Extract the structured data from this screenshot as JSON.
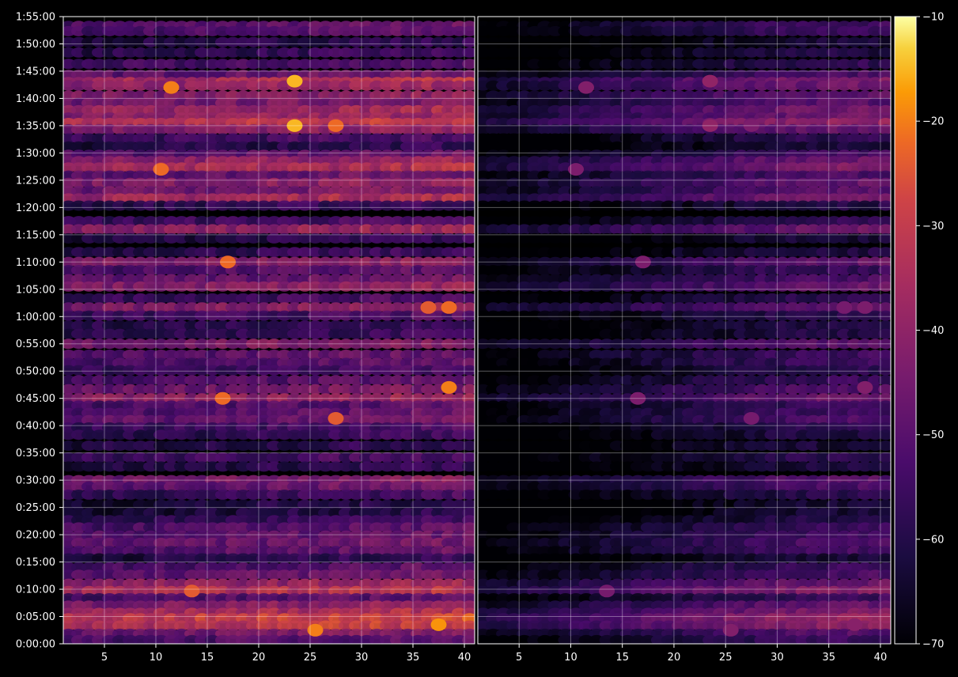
{
  "chart_data": {
    "type": "heatmap",
    "title": "",
    "xlabel": "",
    "ylabel": "",
    "grid": true,
    "colormap": "inferno",
    "panels": [
      {
        "name": "",
        "x_range": [
          1,
          40
        ],
        "intensity_scale": 1.0
      },
      {
        "name": "",
        "x_range": [
          1,
          40
        ],
        "intensity_scale": 0.55
      }
    ],
    "x_ticks": [
      5,
      10,
      15,
      20,
      25,
      30,
      35,
      40
    ],
    "x_tick_labels": [
      "5",
      "10",
      "15",
      "20",
      "25",
      "30",
      "35",
      "40"
    ],
    "y_range_seconds": [
      0,
      6900
    ],
    "y_ticks": [
      0,
      300,
      600,
      900,
      1200,
      1500,
      1800,
      2100,
      2400,
      2700,
      3000,
      3300,
      3600,
      3900,
      4200,
      4500,
      4800,
      5100,
      5400,
      5700,
      6000,
      6300,
      6600,
      6900
    ],
    "y_tick_labels": [
      "0:00:00",
      "0:05:00",
      "0:10:00",
      "0:15:00",
      "0:20:00",
      "0:25:00",
      "0:30:00",
      "0:35:00",
      "0:40:00",
      "0:45:00",
      "0:50:00",
      "0:55:00",
      "1:00:00",
      "1:05:00",
      "1:10:00",
      "1:15:00",
      "1:20:00",
      "1:25:00",
      "1:30:00",
      "1:35:00",
      "1:40:00",
      "1:45:00",
      "1:50:00",
      "1:55:00"
    ],
    "colorbar": {
      "min": -70,
      "max": -10,
      "ticks": [
        -70,
        -60,
        -50,
        -40,
        -30,
        -20,
        -10
      ],
      "tick_labels": [
        "−70",
        "−60",
        "−50",
        "−40",
        "−30",
        "−20",
        "−10"
      ]
    },
    "bands": [
      {
        "time_s": 6798,
        "value": -50
      },
      {
        "time_s": 6740,
        "value": -52
      },
      {
        "time_s": 6620,
        "value": -60
      },
      {
        "time_s": 6505,
        "value": -58
      },
      {
        "time_s": 6380,
        "value": -54
      },
      {
        "time_s": 6260,
        "value": -48
      },
      {
        "time_s": 6180,
        "value": -35
      },
      {
        "time_s": 6140,
        "value": -40
      },
      {
        "time_s": 6030,
        "value": -42
      },
      {
        "time_s": 5950,
        "value": -45
      },
      {
        "time_s": 5870,
        "value": -38
      },
      {
        "time_s": 5790,
        "value": -40
      },
      {
        "time_s": 5730,
        "value": -32
      },
      {
        "time_s": 5660,
        "value": -42
      },
      {
        "time_s": 5560,
        "value": -55
      },
      {
        "time_s": 5470,
        "value": -60
      },
      {
        "time_s": 5380,
        "value": -50
      },
      {
        "time_s": 5310,
        "value": -40
      },
      {
        "time_s": 5240,
        "value": -36
      },
      {
        "time_s": 5150,
        "value": -48
      },
      {
        "time_s": 5070,
        "value": -42
      },
      {
        "time_s": 4980,
        "value": -45
      },
      {
        "time_s": 4900,
        "value": -36
      },
      {
        "time_s": 4820,
        "value": -58
      },
      {
        "time_s": 4650,
        "value": -55
      },
      {
        "time_s": 4560,
        "value": -40
      },
      {
        "time_s": 4460,
        "value": -60
      },
      {
        "time_s": 4310,
        "value": -58
      },
      {
        "time_s": 4200,
        "value": -42
      },
      {
        "time_s": 4110,
        "value": -52
      },
      {
        "time_s": 4010,
        "value": -48
      },
      {
        "time_s": 3930,
        "value": -42
      },
      {
        "time_s": 3800,
        "value": -55
      },
      {
        "time_s": 3700,
        "value": -42
      },
      {
        "time_s": 3610,
        "value": -55
      },
      {
        "time_s": 3500,
        "value": -58
      },
      {
        "time_s": 3410,
        "value": -58
      },
      {
        "time_s": 3300,
        "value": -44
      },
      {
        "time_s": 3180,
        "value": -50
      },
      {
        "time_s": 3090,
        "value": -52
      },
      {
        "time_s": 3010,
        "value": -56
      },
      {
        "time_s": 2900,
        "value": -52
      },
      {
        "time_s": 2800,
        "value": -46
      },
      {
        "time_s": 2700,
        "value": -40
      },
      {
        "time_s": 2620,
        "value": -52
      },
      {
        "time_s": 2540,
        "value": -50
      },
      {
        "time_s": 2460,
        "value": -48
      },
      {
        "time_s": 2380,
        "value": -55
      },
      {
        "time_s": 2300,
        "value": -58
      },
      {
        "time_s": 2180,
        "value": -60
      },
      {
        "time_s": 2050,
        "value": -55
      },
      {
        "time_s": 1950,
        "value": -60
      },
      {
        "time_s": 1800,
        "value": -45
      },
      {
        "time_s": 1730,
        "value": -48
      },
      {
        "time_s": 1640,
        "value": -56
      },
      {
        "time_s": 1530,
        "value": -62
      },
      {
        "time_s": 1440,
        "value": -62
      },
      {
        "time_s": 1360,
        "value": -58
      },
      {
        "time_s": 1280,
        "value": -52
      },
      {
        "time_s": 1190,
        "value": -50
      },
      {
        "time_s": 1110,
        "value": -48
      },
      {
        "time_s": 1020,
        "value": -50
      },
      {
        "time_s": 940,
        "value": -60
      },
      {
        "time_s": 840,
        "value": -52
      },
      {
        "time_s": 760,
        "value": -48
      },
      {
        "time_s": 660,
        "value": -40
      },
      {
        "time_s": 580,
        "value": -34
      },
      {
        "time_s": 500,
        "value": -52
      },
      {
        "time_s": 420,
        "value": -42
      },
      {
        "time_s": 340,
        "value": -36
      },
      {
        "time_s": 280,
        "value": -30
      },
      {
        "time_s": 200,
        "value": -32
      },
      {
        "time_s": 110,
        "value": -45
      },
      {
        "time_s": 40,
        "value": -52
      }
    ],
    "hotspots": [
      {
        "time_s": 6190,
        "x": 23,
        "value": -15
      },
      {
        "time_s": 6120,
        "x": 11,
        "value": -20
      },
      {
        "time_s": 5700,
        "x": 23,
        "value": -15
      },
      {
        "time_s": 5700,
        "x": 27,
        "value": -22
      },
      {
        "time_s": 5220,
        "x": 10,
        "value": -22
      },
      {
        "time_s": 4200,
        "x": 16.5,
        "value": -22
      },
      {
        "time_s": 3700,
        "x": 36,
        "value": -24
      },
      {
        "time_s": 3700,
        "x": 38,
        "value": -22
      },
      {
        "time_s": 2820,
        "x": 38,
        "value": -20
      },
      {
        "time_s": 2700,
        "x": 16,
        "value": -22
      },
      {
        "time_s": 2480,
        "x": 27,
        "value": -24
      },
      {
        "time_s": 580,
        "x": 13,
        "value": -24
      },
      {
        "time_s": 210,
        "x": 37,
        "value": -18
      },
      {
        "time_s": 150,
        "x": 25,
        "value": -20
      }
    ]
  }
}
